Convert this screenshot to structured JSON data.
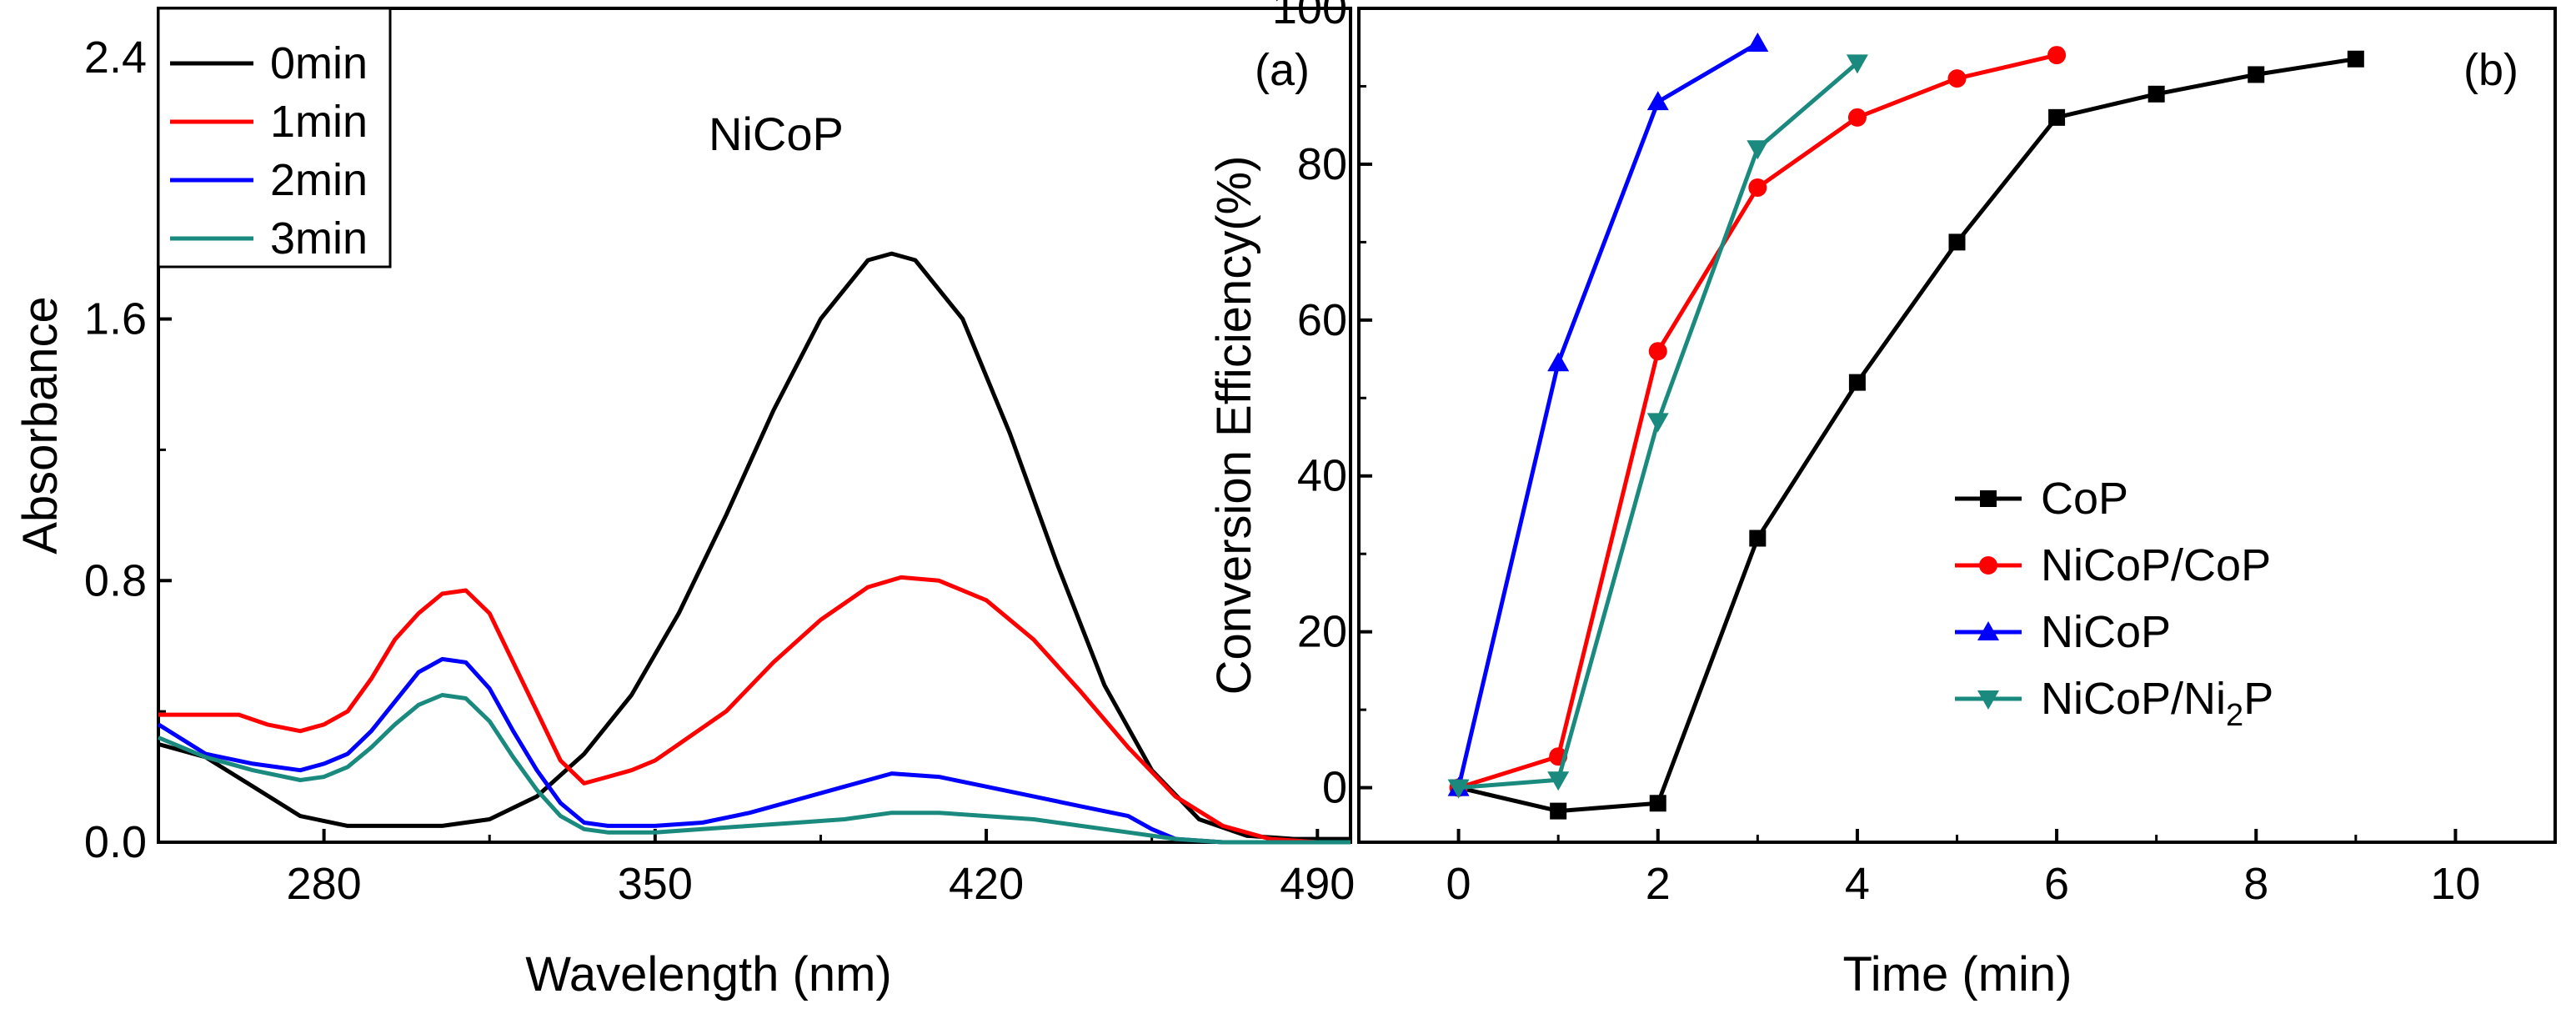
{
  "chart_data": [
    {
      "type": "line",
      "panel_label": "(a)",
      "annotation": "NiCoP",
      "xlabel": "Wavelength (nm)",
      "ylabel": "Absorbance",
      "xlim": [
        245,
        497
      ],
      "ylim": [
        0,
        2.55
      ],
      "xticks": [
        280,
        350,
        420,
        490
      ],
      "yticks": [
        0.0,
        0.8,
        1.6,
        2.4
      ],
      "ytick_labels": [
        "0.0",
        "0.8",
        "1.6",
        "2.4"
      ],
      "legend_position": "top-left",
      "series": [
        {
          "name": "0min",
          "color": "#000000",
          "x": [
            245,
            255,
            265,
            275,
            285,
            295,
            305,
            315,
            325,
            335,
            345,
            355,
            365,
            375,
            385,
            395,
            400,
            405,
            415,
            425,
            435,
            445,
            455,
            465,
            475,
            485,
            497
          ],
          "y": [
            0.3,
            0.26,
            0.17,
            0.08,
            0.05,
            0.05,
            0.05,
            0.07,
            0.14,
            0.27,
            0.45,
            0.7,
            1.0,
            1.32,
            1.6,
            1.78,
            1.8,
            1.78,
            1.6,
            1.25,
            0.85,
            0.48,
            0.22,
            0.07,
            0.02,
            0.01,
            0.01
          ]
        },
        {
          "name": "1min",
          "color": "#ff0000",
          "x": [
            245,
            255,
            262,
            268,
            275,
            280,
            285,
            290,
            295,
            300,
            305,
            310,
            315,
            320,
            325,
            330,
            335,
            340,
            345,
            350,
            355,
            365,
            375,
            385,
            395,
            402,
            410,
            420,
            430,
            440,
            450,
            460,
            470,
            480,
            490,
            497
          ],
          "y": [
            0.39,
            0.39,
            0.39,
            0.36,
            0.34,
            0.36,
            0.4,
            0.5,
            0.62,
            0.7,
            0.76,
            0.77,
            0.7,
            0.55,
            0.4,
            0.25,
            0.18,
            0.2,
            0.22,
            0.25,
            0.3,
            0.4,
            0.55,
            0.68,
            0.78,
            0.81,
            0.8,
            0.74,
            0.62,
            0.46,
            0.29,
            0.14,
            0.05,
            0.01,
            0.0,
            0.0
          ]
        },
        {
          "name": "2min",
          "color": "#0000ff",
          "x": [
            245,
            255,
            265,
            275,
            280,
            285,
            290,
            295,
            300,
            305,
            310,
            315,
            320,
            325,
            330,
            335,
            340,
            345,
            350,
            360,
            370,
            380,
            390,
            400,
            410,
            420,
            430,
            440,
            450,
            455,
            460,
            470,
            480,
            490,
            497
          ],
          "y": [
            0.36,
            0.27,
            0.24,
            0.22,
            0.24,
            0.27,
            0.34,
            0.43,
            0.52,
            0.56,
            0.55,
            0.47,
            0.34,
            0.22,
            0.12,
            0.06,
            0.05,
            0.05,
            0.05,
            0.06,
            0.09,
            0.13,
            0.17,
            0.21,
            0.2,
            0.17,
            0.14,
            0.11,
            0.08,
            0.04,
            0.01,
            0.0,
            0.0,
            0.0,
            0.0
          ]
        },
        {
          "name": "3min",
          "color": "#1a8a7e",
          "x": [
            245,
            255,
            265,
            275,
            280,
            285,
            290,
            295,
            300,
            305,
            310,
            315,
            320,
            325,
            330,
            335,
            340,
            345,
            350,
            360,
            370,
            380,
            390,
            400,
            410,
            420,
            430,
            440,
            450,
            460,
            470,
            480,
            490,
            497
          ],
          "y": [
            0.32,
            0.26,
            0.22,
            0.19,
            0.2,
            0.23,
            0.29,
            0.36,
            0.42,
            0.45,
            0.44,
            0.37,
            0.26,
            0.16,
            0.08,
            0.04,
            0.03,
            0.03,
            0.03,
            0.04,
            0.05,
            0.06,
            0.07,
            0.09,
            0.09,
            0.08,
            0.07,
            0.05,
            0.03,
            0.01,
            0.0,
            0.0,
            0.0,
            0.0
          ]
        }
      ]
    },
    {
      "type": "line",
      "panel_label": "(b)",
      "xlabel": "Time (min)",
      "ylabel": "Conversion Efficiency(%)",
      "xlim": [
        -1,
        11
      ],
      "ylim": [
        -7,
        100
      ],
      "xticks": [
        0,
        2,
        4,
        6,
        8,
        10
      ],
      "yticks": [
        0,
        20,
        40,
        60,
        80,
        100
      ],
      "legend_position": "center-right",
      "series": [
        {
          "name": "CoP",
          "color": "#000000",
          "marker": "square",
          "x": [
            0,
            1,
            2,
            3,
            4,
            5,
            6,
            7,
            8,
            9
          ],
          "y": [
            0,
            -3,
            -2,
            32,
            52,
            70,
            86,
            89,
            91.5,
            93.5
          ]
        },
        {
          "name": "NiCoP/CoP",
          "color": "#ff0000",
          "marker": "circle",
          "x": [
            0,
            1,
            2,
            3,
            4,
            5,
            6
          ],
          "y": [
            0,
            4,
            56,
            77,
            86,
            91,
            94
          ]
        },
        {
          "name": "NiCoP",
          "color": "#0000ff",
          "marker": "triangle-up",
          "x": [
            0,
            1,
            2,
            3
          ],
          "y": [
            0,
            54.5,
            88,
            95.5
          ]
        },
        {
          "name": "NiCoP/Ni",
          "name_subscript": "2",
          "name_suffix": "P",
          "color": "#1a8a7e",
          "marker": "triangle-down",
          "x": [
            0,
            1,
            2,
            3,
            4
          ],
          "y": [
            0,
            1,
            47,
            82,
            93
          ]
        }
      ]
    }
  ]
}
